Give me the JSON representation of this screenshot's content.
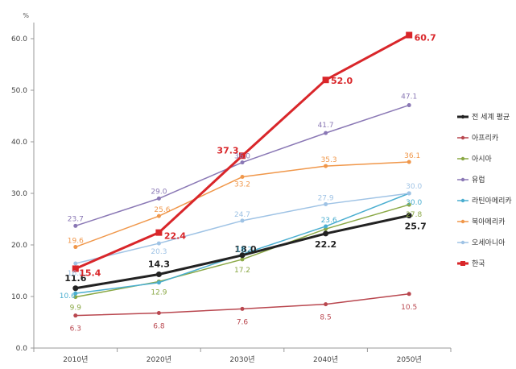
{
  "chart_data": {
    "type": "line",
    "unit": "%",
    "ylim": [
      0,
      60
    ],
    "yticks": [
      "0.0",
      "10.0",
      "20.0",
      "30.0",
      "40.0",
      "50.0",
      "60.0"
    ],
    "categories": [
      "2010년",
      "2020년",
      "2030년",
      "2040년",
      "2050년"
    ],
    "legend_position": "right",
    "series": [
      {
        "name": "전 세계 평균",
        "color": "#222222",
        "width": 3,
        "bold": true,
        "marker": "circle",
        "values": [
          11.6,
          14.3,
          18.0,
          22.2,
          25.7
        ],
        "labels": [
          "11.6",
          "14.3",
          "18.0",
          "22.2",
          "25.7"
        ]
      },
      {
        "name": "아프리카",
        "color": "#b9474f",
        "width": 1.5,
        "bold": false,
        "marker": "circle",
        "values": [
          6.3,
          6.8,
          7.6,
          8.5,
          10.5
        ],
        "labels": [
          "6.3",
          "6.8",
          "7.6",
          "8.5",
          "10.5"
        ]
      },
      {
        "name": "아시아",
        "color": "#8aa845",
        "width": 1.5,
        "bold": false,
        "marker": "circle",
        "values": [
          9.9,
          12.9,
          17.2,
          23.1,
          27.8
        ],
        "labels": [
          "9.9",
          "12.9",
          "17.2",
          "",
          "27.8"
        ]
      },
      {
        "name": "유럽",
        "color": "#8a78b5",
        "width": 1.5,
        "bold": false,
        "marker": "circle",
        "values": [
          23.7,
          29.0,
          36.0,
          41.7,
          47.1
        ],
        "labels": [
          "23.7",
          "29.0",
          "36.0",
          "41.7",
          "47.1"
        ]
      },
      {
        "name": "라틴아메리카",
        "color": "#4aaed0",
        "width": 1.5,
        "bold": false,
        "marker": "circle",
        "values": [
          10.6,
          12.7,
          18.2,
          23.6,
          30.0
        ],
        "labels": [
          "10.6",
          "",
          "18.2",
          "23.6",
          "30.0"
        ]
      },
      {
        "name": "북아메리카",
        "color": "#f0974a",
        "width": 1.5,
        "bold": false,
        "marker": "circle",
        "values": [
          19.6,
          25.6,
          33.2,
          35.3,
          36.1
        ],
        "labels": [
          "19.6",
          "25.6",
          "33.2",
          "35.3",
          "36.1"
        ]
      },
      {
        "name": "오세아니아",
        "color": "#9fc3e5",
        "width": 1.5,
        "bold": false,
        "marker": "circle",
        "values": [
          16.4,
          20.3,
          24.7,
          27.9,
          30.0
        ],
        "labels": [
          "16.4",
          "20.3",
          "24.7",
          "27.9",
          "30.0"
        ]
      },
      {
        "name": "한국",
        "color": "#d9262a",
        "width": 3,
        "bold": true,
        "marker": "square",
        "values": [
          15.4,
          22.4,
          37.3,
          52.0,
          60.7
        ],
        "labels": [
          "15.4",
          "22.4",
          "37.3",
          "52.0",
          "60.7"
        ]
      }
    ]
  }
}
